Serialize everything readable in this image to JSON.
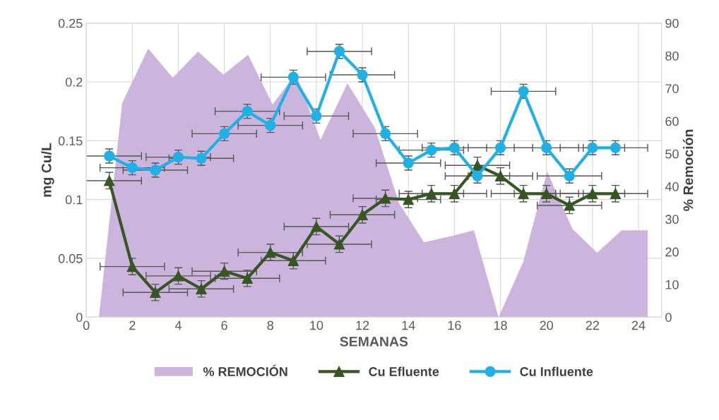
{
  "chart_data": {
    "type": "line",
    "xlabel": "SEMANAS",
    "ylabel": "mg Cu/L",
    "y2label": "% Remoción",
    "xlim": [
      0,
      25
    ],
    "xticks": [
      0,
      2,
      4,
      6,
      8,
      10,
      12,
      14,
      16,
      18,
      20,
      22,
      24
    ],
    "ylim": [
      0,
      0.25
    ],
    "yticks": [
      0,
      0.05,
      0.1,
      0.15,
      0.2,
      0.25
    ],
    "y2lim": [
      0,
      90
    ],
    "y2ticks": [
      0,
      10,
      20,
      30,
      40,
      50,
      60,
      70,
      80,
      90
    ],
    "grid": true,
    "legend": "bottom",
    "series": [
      {
        "name": "% REMOCIÓN",
        "type": "area",
        "axis": "y2",
        "color": "#cbb5dc",
        "x": [
          0.55,
          1.56,
          2.69,
          3.76,
          4.86,
          5.96,
          7.03,
          8.1,
          9.11,
          10.18,
          11.35,
          12.54,
          13.6,
          14.68,
          15.93,
          16.85,
          17.92,
          18.99,
          20.03,
          21.13,
          22.2,
          23.27,
          24.4
        ],
        "values": [
          0,
          65.5,
          82.2,
          73.3,
          81.3,
          74.2,
          80.3,
          65.1,
          74.6,
          54.3,
          71.6,
          58.0,
          34.8,
          22.9,
          24.9,
          26.6,
          0,
          16.9,
          44.6,
          27.0,
          19.7,
          26.6,
          26.6
        ]
      },
      {
        "name": "Cu Efluente",
        "marker": "triangle",
        "color": "#375623",
        "x": [
          1,
          2,
          3,
          4,
          5,
          6,
          7,
          8,
          9,
          10,
          11,
          12,
          13,
          14,
          15,
          16,
          17,
          18,
          19,
          20,
          21,
          22,
          23
        ],
        "values": [
          0.116,
          0.043,
          0.021,
          0.035,
          0.024,
          0.039,
          0.033,
          0.055,
          0.048,
          0.077,
          0.062,
          0.087,
          0.101,
          0.1,
          0.105,
          0.105,
          0.129,
          0.12,
          0.105,
          0.105,
          0.095,
          0.105,
          0.105
        ],
        "errors": [
          0.007,
          0.007,
          0.007,
          0.007,
          0.007,
          0.007,
          0.007,
          0.007,
          0.007,
          0.007,
          0.007,
          0.007,
          0.007,
          0.007,
          0.007,
          0.007,
          0.007,
          0.007,
          0.007,
          0.007,
          0.007,
          0.007,
          0.007
        ],
        "xerrors": [
          1.4,
          1.4,
          1.4,
          1.4,
          1.4,
          1.4,
          1.4,
          1.4,
          1.4,
          1.4,
          1.4,
          1.4,
          1.4,
          1.4,
          1.4,
          1.4,
          1.4,
          1.4,
          1.4,
          1.4,
          1.4,
          1.4,
          1.4
        ]
      },
      {
        "name": "Cu Influente",
        "marker": "circle",
        "color": "#1fb1e6",
        "x": [
          1,
          2,
          3,
          4,
          5,
          6,
          7,
          8,
          9,
          10,
          11,
          12,
          13,
          14,
          15,
          16,
          17,
          18,
          19,
          20,
          21,
          22,
          23
        ],
        "values": [
          0.137,
          0.127,
          0.125,
          0.136,
          0.135,
          0.156,
          0.175,
          0.163,
          0.204,
          0.171,
          0.226,
          0.206,
          0.156,
          0.131,
          0.142,
          0.144,
          0.12,
          0.144,
          0.192,
          0.144,
          0.12,
          0.144,
          0.144
        ],
        "errors": [
          0.006,
          0.006,
          0.006,
          0.006,
          0.006,
          0.006,
          0.006,
          0.006,
          0.006,
          0.006,
          0.006,
          0.006,
          0.006,
          0.006,
          0.006,
          0.006,
          0.006,
          0.006,
          0.006,
          0.006,
          0.006,
          0.006,
          0.006
        ],
        "xerrors": [
          1.4,
          1.4,
          1.4,
          1.4,
          1.4,
          1.4,
          1.4,
          1.4,
          1.4,
          1.4,
          1.4,
          1.4,
          1.4,
          1.4,
          1.4,
          1.4,
          1.4,
          1.4,
          1.4,
          1.4,
          1.4,
          1.4,
          1.4
        ]
      }
    ]
  }
}
